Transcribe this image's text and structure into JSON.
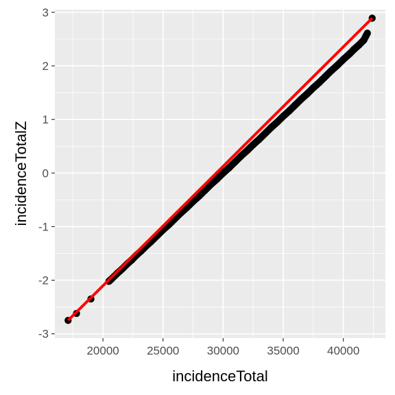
{
  "chart_data": {
    "type": "scatter",
    "title": "",
    "xlabel": "incidenceTotal",
    "ylabel": "incidenceTotalZ",
    "xlim": [
      16000,
      43500
    ],
    "ylim": [
      -3.08,
      3.05
    ],
    "x_ticks": [
      20000,
      25000,
      30000,
      35000,
      40000
    ],
    "x_tick_labels": [
      "20000",
      "25000",
      "30000",
      "35000",
      "40000"
    ],
    "y_ticks": [
      -3,
      -2,
      -1,
      0,
      1,
      2,
      3
    ],
    "y_tick_labels": [
      "-3",
      "-2",
      "-1",
      "0",
      "1",
      "2",
      "3"
    ],
    "grid": true,
    "background_color": "#ebebeb",
    "point_color": "#000000",
    "fit_line_color": "#ff0000",
    "series": [
      {
        "name": "",
        "points": [
          {
            "x": 17100,
            "y": -2.75
          },
          {
            "x": 17800,
            "y": -2.62
          },
          {
            "x": 19000,
            "y": -2.35
          },
          {
            "x": 20500,
            "y": -2.02
          },
          {
            "x": 20700,
            "y": -1.98
          },
          {
            "x": 21200,
            "y": -1.87
          },
          {
            "x": 21600,
            "y": -1.79
          },
          {
            "x": 22000,
            "y": -1.7
          },
          {
            "x": 22400,
            "y": -1.62
          },
          {
            "x": 22800,
            "y": -1.53
          },
          {
            "x": 23200,
            "y": -1.45
          },
          {
            "x": 23600,
            "y": -1.36
          },
          {
            "x": 24000,
            "y": -1.28
          },
          {
            "x": 24500,
            "y": -1.17
          },
          {
            "x": 25000,
            "y": -1.06
          },
          {
            "x": 25500,
            "y": -0.96
          },
          {
            "x": 26000,
            "y": -0.85
          },
          {
            "x": 26500,
            "y": -0.74
          },
          {
            "x": 27000,
            "y": -0.64
          },
          {
            "x": 27500,
            "y": -0.53
          },
          {
            "x": 28000,
            "y": -0.43
          },
          {
            "x": 28500,
            "y": -0.32
          },
          {
            "x": 29000,
            "y": -0.21
          },
          {
            "x": 29500,
            "y": -0.11
          },
          {
            "x": 30000,
            "y": 0.0
          },
          {
            "x": 30500,
            "y": 0.1
          },
          {
            "x": 31000,
            "y": 0.21
          },
          {
            "x": 31500,
            "y": 0.32
          },
          {
            "x": 32000,
            "y": 0.42
          },
          {
            "x": 32500,
            "y": 0.53
          },
          {
            "x": 33000,
            "y": 0.63
          },
          {
            "x": 33500,
            "y": 0.74
          },
          {
            "x": 34000,
            "y": 0.85
          },
          {
            "x": 34500,
            "y": 0.95
          },
          {
            "x": 35000,
            "y": 1.06
          },
          {
            "x": 35500,
            "y": 1.16
          },
          {
            "x": 36000,
            "y": 1.27
          },
          {
            "x": 36500,
            "y": 1.38
          },
          {
            "x": 37000,
            "y": 1.48
          },
          {
            "x": 37500,
            "y": 1.59
          },
          {
            "x": 38000,
            "y": 1.69
          },
          {
            "x": 38500,
            "y": 1.8
          },
          {
            "x": 39000,
            "y": 1.91
          },
          {
            "x": 39500,
            "y": 2.01
          },
          {
            "x": 40000,
            "y": 2.12
          },
          {
            "x": 40500,
            "y": 2.22
          },
          {
            "x": 40900,
            "y": 2.31
          },
          {
            "x": 41300,
            "y": 2.39
          },
          {
            "x": 41700,
            "y": 2.48
          },
          {
            "x": 42000,
            "y": 2.61
          },
          {
            "x": 42400,
            "y": 2.89
          }
        ]
      }
    ],
    "fit_line": {
      "x": [
        17100,
        42400
      ],
      "y": [
        -2.75,
        2.89
      ]
    }
  }
}
